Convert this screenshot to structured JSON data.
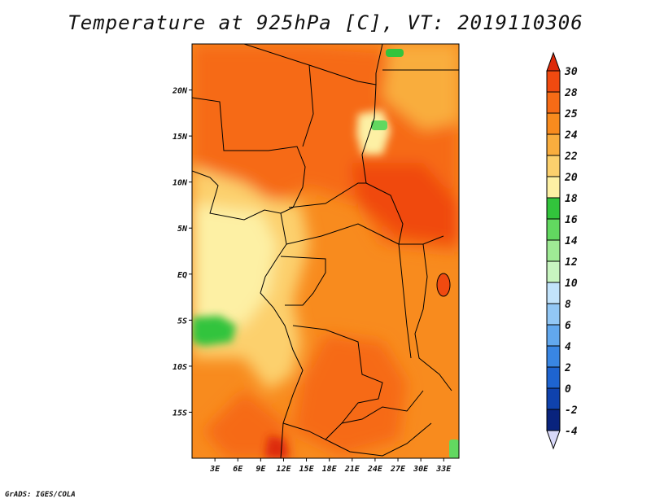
{
  "title": "Temperature at 925hPa [C], VT: 2019110306",
  "footer": "GrADS: IGES/COLA",
  "map": {
    "lon_range": [
      0,
      35
    ],
    "lat_range": [
      -20,
      25
    ],
    "lon_ticks": [
      {
        "value": 3,
        "label": "3E"
      },
      {
        "value": 6,
        "label": "6E"
      },
      {
        "value": 9,
        "label": "9E"
      },
      {
        "value": 12,
        "label": "12E"
      },
      {
        "value": 15,
        "label": "15E"
      },
      {
        "value": 18,
        "label": "18E"
      },
      {
        "value": 21,
        "label": "21E"
      },
      {
        "value": 24,
        "label": "24E"
      },
      {
        "value": 27,
        "label": "27E"
      },
      {
        "value": 30,
        "label": "30E"
      },
      {
        "value": 33,
        "label": "33E"
      }
    ],
    "lat_ticks": [
      {
        "value": 20,
        "label": "20N"
      },
      {
        "value": 15,
        "label": "15N"
      },
      {
        "value": 10,
        "label": "10N"
      },
      {
        "value": 5,
        "label": "5N"
      },
      {
        "value": 0,
        "label": "EQ"
      },
      {
        "value": -5,
        "label": "5S"
      },
      {
        "value": -10,
        "label": "10S"
      },
      {
        "value": -15,
        "label": "15S"
      }
    ]
  },
  "colorbar": {
    "levels": [
      "30",
      "28",
      "25",
      "24",
      "22",
      "20",
      "18",
      "16",
      "14",
      "12",
      "10",
      "8",
      "6",
      "4",
      "2",
      "0",
      "-2",
      "-4"
    ],
    "colors": [
      "#dd2a0a",
      "#f04a10",
      "#f66b16",
      "#f88b1e",
      "#f9ad3e",
      "#fcd06d",
      "#fdf0a4",
      "#32c43c",
      "#62d860",
      "#9fea95",
      "#c8f5c0",
      "#c2e3fb",
      "#92c7f5",
      "#62a8ee",
      "#3986e3",
      "#1e64d0",
      "#0f42ad",
      "#09237d",
      "#030d50",
      "#d8d8f8"
    ],
    "top_color": "#dd2a0a",
    "bottom_color": "#d8d8f8"
  }
}
